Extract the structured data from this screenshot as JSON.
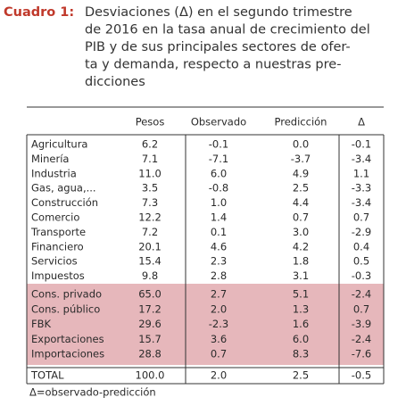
{
  "title": {
    "label": "Cuadro 1:",
    "lines": [
      "Desviaciones (Δ) en el segundo trimestre",
      "de 2016 en la tasa anual de crecimiento del",
      "PIB y de sus principales sectores de ofer-",
      "ta y demanda, respecto a nuestras pre-",
      "dicciones"
    ]
  },
  "table": {
    "header": [
      "Pesos",
      "Observado",
      "Predicción",
      "Δ"
    ],
    "rows": [
      [
        "Agricultura",
        "6.2",
        "-0.1",
        "0.0",
        "-0.1"
      ],
      [
        "Minería",
        "7.1",
        "-7.1",
        "-3.7",
        "-3.4"
      ],
      [
        "Industria",
        "11.0",
        "6.0",
        "4.9",
        "1.1"
      ],
      [
        "Gas, agua,...",
        "3.5",
        "-0.8",
        "2.5",
        "-3.3"
      ],
      [
        "Construcción",
        "7.3",
        "1.0",
        "4.4",
        "-3.4"
      ],
      [
        "Comercio",
        "12.2",
        "1.4",
        "0.7",
        "0.7"
      ],
      [
        "Transporte",
        "7.2",
        "0.1",
        "3.0",
        "-2.9"
      ],
      [
        "Financiero",
        "20.1",
        "4.6",
        "4.2",
        "0.4"
      ],
      [
        "Servicios",
        "15.4",
        "2.3",
        "1.8",
        "0.5"
      ],
      [
        "Impuestos",
        "9.8",
        "2.8",
        "3.1",
        "-0.3"
      ]
    ],
    "demand_rows": [
      [
        "Cons. privado",
        "65.0",
        "2.7",
        "5.1",
        "-2.4"
      ],
      [
        "Cons. público",
        "17.2",
        "2.0",
        "1.3",
        "0.7"
      ],
      [
        "FBK",
        "29.6",
        "-2.3",
        "1.6",
        "-3.9"
      ],
      [
        "Exportaciones",
        "15.7",
        "3.6",
        "6.0",
        "-2.4"
      ],
      [
        "Importaciones",
        "28.8",
        "0.7",
        "8.3",
        "-7.6"
      ]
    ],
    "total": [
      "TOTAL",
      "100.0",
      "2.0",
      "2.5",
      "-0.5"
    ]
  },
  "footnote": "Δ=observado-predicción"
}
